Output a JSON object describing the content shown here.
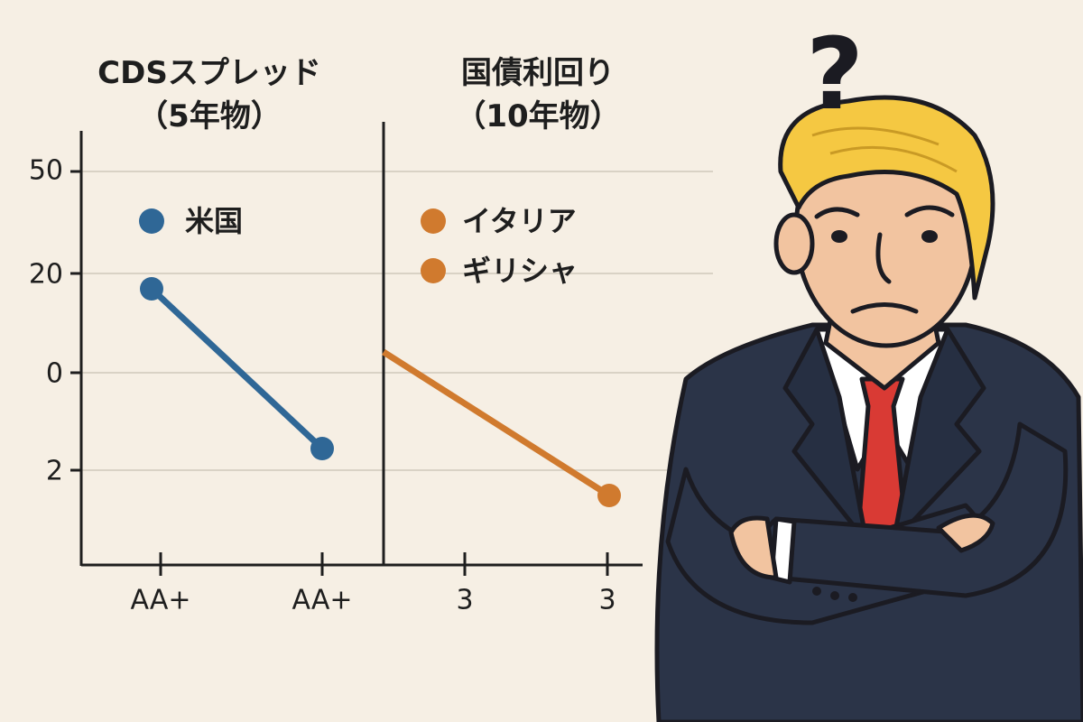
{
  "panels": [
    {
      "title": [
        "CDSスプレッド",
        "（5年物）"
      ],
      "legend": [
        "米国"
      ],
      "x_labels": [
        "AA+",
        "AA+"
      ]
    },
    {
      "title": [
        "国債利回り",
        "（10年物）"
      ],
      "legend": [
        "イタリア",
        "ギリシャ"
      ],
      "x_labels": [
        "3",
        "3"
      ]
    }
  ],
  "y_labels": [
    "50",
    "20",
    "0",
    "2"
  ],
  "question_mark": "?"
}
